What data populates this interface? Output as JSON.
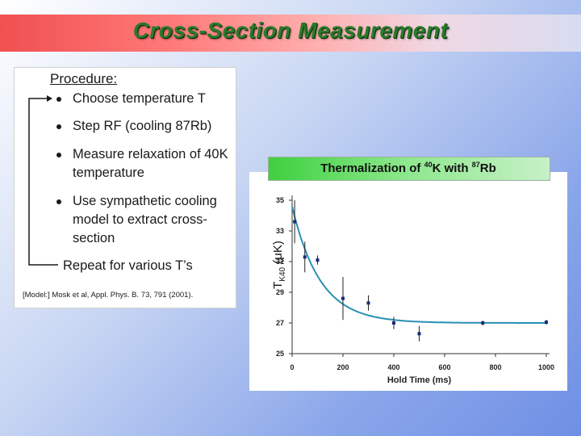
{
  "page": {
    "title": "Cross-Section Measurement"
  },
  "procedure": {
    "heading": "Procedure:",
    "items": [
      {
        "lines": [
          "Choose temperature T"
        ]
      },
      {
        "lines": [
          "Step RF (cooling 87Rb)"
        ]
      },
      {
        "lines": [
          "Measure relaxation of 40K",
          "temperature"
        ]
      },
      {
        "lines": [
          "Use sympathetic cooling",
          "model to extract cross-",
          "section"
        ]
      }
    ],
    "repeat": "Repeat for various T’s",
    "citation": "[Model:] Mosk et al, Appl. Phys. B. 73, 791 (2001)."
  },
  "chart_data": {
    "type": "scatter",
    "title_pre": "Thermalization of ",
    "title_sup1": "40",
    "title_mid": "K with ",
    "title_sup2": "87",
    "title_post": "Rb",
    "xlabel": "Hold Time (ms)",
    "ylabel_main": "T",
    "ylabel_sub": "K40",
    "ylabel_unit": " (μK)",
    "xlim": [
      0,
      1000
    ],
    "ylim": [
      25,
      35
    ],
    "xticks": [
      0,
      200,
      400,
      600,
      800,
      1000
    ],
    "yticks": [
      25,
      27,
      29,
      31,
      33,
      35
    ],
    "grid": false,
    "points": [
      {
        "x": 10,
        "y": 33.6,
        "err": 1.4
      },
      {
        "x": 50,
        "y": 31.3,
        "err": 1.0
      },
      {
        "x": 100,
        "y": 31.1,
        "err": 0.3
      },
      {
        "x": 200,
        "y": 28.6,
        "err": 1.4
      },
      {
        "x": 300,
        "y": 28.3,
        "err": 0.5
      },
      {
        "x": 400,
        "y": 27.0,
        "err": 0.4
      },
      {
        "x": 500,
        "y": 26.3,
        "err": 0.5
      },
      {
        "x": 750,
        "y": 27.0,
        "err": 0.15
      },
      {
        "x": 1000,
        "y": 27.05,
        "err": 0.15
      }
    ],
    "fit": {
      "type": "exponential",
      "T0": 34.6,
      "Tinf": 27.0,
      "tau": 110
    },
    "colors": {
      "fit": "#2a8fb5",
      "points": "#1a2a7a"
    }
  }
}
